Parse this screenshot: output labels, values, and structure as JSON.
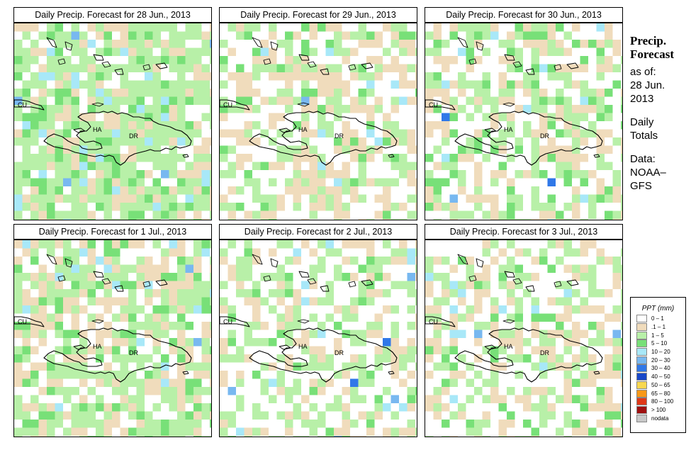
{
  "panels": [
    {
      "title": "Daily Precip. Forecast for  28 Jun., 2013",
      "seed": 11,
      "w": [
        0.18,
        0.18,
        0.47,
        0.12,
        0.05
      ]
    },
    {
      "title": "Daily Precip. Forecast for  29 Jun., 2013",
      "seed": 29,
      "w": [
        0.42,
        0.28,
        0.22,
        0.05,
        0.03
      ]
    },
    {
      "title": "Daily Precip. Forecast for  30 Jun., 2013",
      "seed": 47,
      "w": [
        0.4,
        0.2,
        0.27,
        0.11,
        0.02
      ]
    },
    {
      "title": "Daily Precip. Forecast for  1 Jul., 2013",
      "seed": 63,
      "w": [
        0.22,
        0.23,
        0.38,
        0.12,
        0.05
      ]
    },
    {
      "title": "Daily Precip. Forecast for  2 Jul., 2013",
      "seed": 81,
      "w": [
        0.47,
        0.15,
        0.31,
        0.05,
        0.02
      ]
    },
    {
      "title": "Daily Precip. Forecast for  3 Jul., 2013",
      "seed": 97,
      "w": [
        0.45,
        0.25,
        0.23,
        0.05,
        0.02
      ]
    }
  ],
  "map_labels": {
    "cu": "CU",
    "ha": "HA",
    "dr": "DR"
  },
  "sidebar": {
    "title1": "Precip.",
    "title2": "Forecast",
    "asof": "as of:",
    "date1": "28 Jun.",
    "date2": "2013",
    "totals1": "Daily",
    "totals2": "Totals",
    "data1": "Data:",
    "data2": "NOAA–",
    "data3": "GFS"
  },
  "legend": {
    "title": "PPT (mm)",
    "items": [
      {
        "label": "0 – 1",
        "color": "#ffffff"
      },
      {
        "label": ".1 – 1",
        "color": "#f0dcbc"
      },
      {
        "label": "1 – 5",
        "color": "#b8f0a8"
      },
      {
        "label": "5 – 10",
        "color": "#78e078"
      },
      {
        "label": "10 – 20",
        "color": "#a8e8f8"
      },
      {
        "label": "20 – 30",
        "color": "#78b8f0"
      },
      {
        "label": "30 – 40",
        "color": "#3078e8"
      },
      {
        "label": "40 – 50",
        "color": "#1848c8"
      },
      {
        "label": "50 – 65",
        "color": "#f8d850"
      },
      {
        "label": "65 – 80",
        "color": "#f89818"
      },
      {
        "label": "80 – 100",
        "color": "#e03818"
      },
      {
        "label": "> 100",
        "color": "#a01010"
      },
      {
        "label": "nodata",
        "color": "#c8c8c8"
      }
    ]
  }
}
